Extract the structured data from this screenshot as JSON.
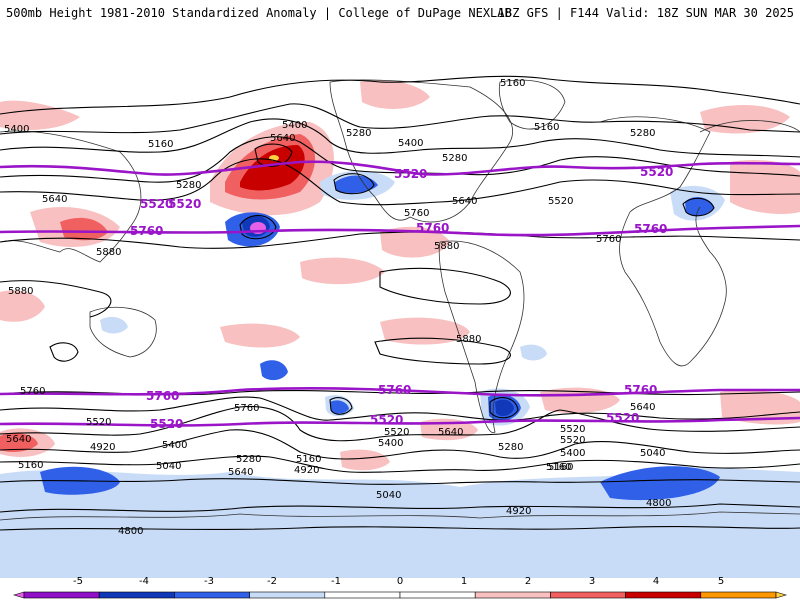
{
  "header": {
    "left": "500mb Height 1981-2010 Standardized Anomaly | College of DuPage NEXLAB",
    "right": "18Z GFS | F144 Valid: 18Z SUN MAR 30 2025"
  },
  "contour_labels": {
    "black": [
      "5160",
      "5400",
      "5160",
      "5280",
      "5640",
      "5400",
      "5280",
      "5280",
      "5160",
      "5400",
      "5640",
      "5640",
      "5520",
      "5760",
      "5880",
      "5880",
      "5880",
      "5880",
      "5760",
      "5640",
      "5520",
      "5400",
      "5160",
      "4920",
      "5760",
      "5640",
      "5520",
      "5400",
      "5280",
      "5160",
      "4920",
      "5040",
      "4800",
      "5640",
      "5520",
      "5400",
      "5280",
      "5040",
      "5160",
      "5520",
      "4920",
      "5160",
      "5640",
      "5760",
      "5280",
      "5040",
      "4800"
    ],
    "purple": [
      "5520",
      "5520",
      "5520",
      "5520",
      "5760",
      "5760",
      "5760",
      "5760",
      "5760",
      "5760",
      "5520",
      "5520",
      "5520"
    ]
  },
  "colorbar": {
    "ticks": [
      "-5",
      "-4",
      "-3",
      "-2",
      "-1",
      "0",
      "1",
      "2",
      "3",
      "4",
      "5"
    ],
    "colors": [
      "#e860e8",
      "#9010c8",
      "#1038b8",
      "#3060e8",
      "#c8dcf8",
      "#ffffff",
      "#ffffff",
      "#f8c0c0",
      "#f06060",
      "#c80000",
      "#ff9800",
      "#ffd040"
    ]
  },
  "map": {
    "line_colors": {
      "contour": "#000000",
      "thick_contour": "#9a14c8",
      "coast": "#333333"
    }
  }
}
